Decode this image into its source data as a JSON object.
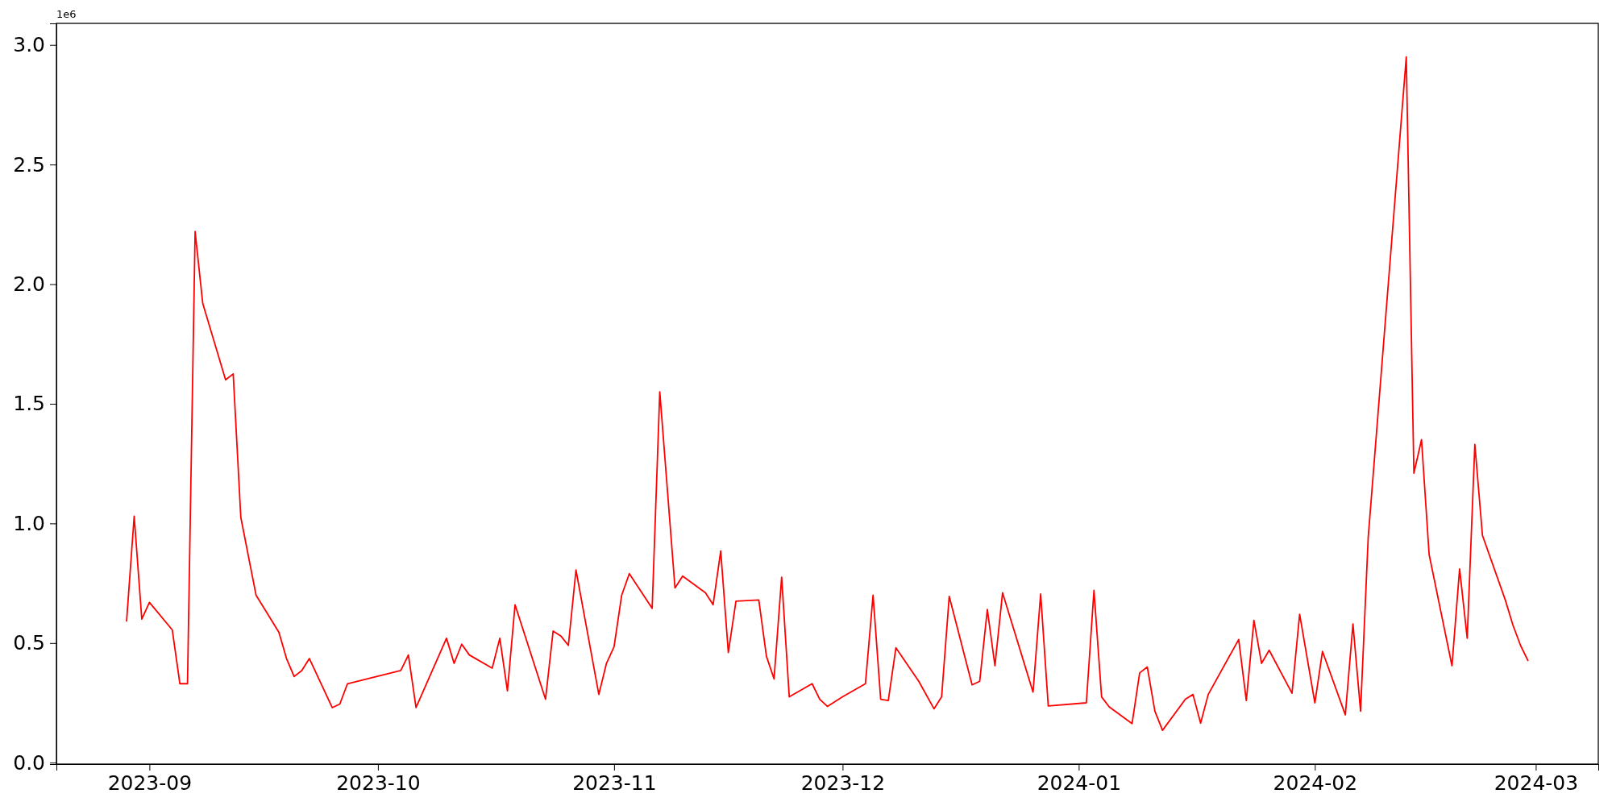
{
  "chart_data": {
    "type": "line",
    "annotations": [
      "1e6"
    ],
    "x": [
      "2023-08-29",
      "2023-08-30",
      "2023-08-31",
      "2023-09-01",
      "2023-09-04",
      "2023-09-05",
      "2023-09-06",
      "2023-09-07",
      "2023-09-08",
      "2023-09-11",
      "2023-09-12",
      "2023-09-13",
      "2023-09-15",
      "2023-09-18",
      "2023-09-19",
      "2023-09-20",
      "2023-09-21",
      "2023-09-22",
      "2023-09-25",
      "2023-09-26",
      "2023-09-27",
      "2023-10-04",
      "2023-10-05",
      "2023-10-06",
      "2023-10-10",
      "2023-10-11",
      "2023-10-12",
      "2023-10-13",
      "2023-10-16",
      "2023-10-17",
      "2023-10-18",
      "2023-10-19",
      "2023-10-23",
      "2023-10-24",
      "2023-10-25",
      "2023-10-26",
      "2023-10-27",
      "2023-10-30",
      "2023-10-31",
      "2023-11-01",
      "2023-11-02",
      "2023-11-03",
      "2023-11-06",
      "2023-11-07",
      "2023-11-09",
      "2023-11-10",
      "2023-11-13",
      "2023-11-14",
      "2023-11-15",
      "2023-11-16",
      "2023-11-17",
      "2023-11-20",
      "2023-11-21",
      "2023-11-22",
      "2023-11-23",
      "2023-11-24",
      "2023-11-27",
      "2023-11-28",
      "2023-11-29",
      "2023-12-01",
      "2023-12-04",
      "2023-12-05",
      "2023-12-06",
      "2023-12-07",
      "2023-12-08",
      "2023-12-11",
      "2023-12-13",
      "2023-12-14",
      "2023-12-15",
      "2023-12-18",
      "2023-12-19",
      "2023-12-20",
      "2023-12-21",
      "2023-12-22",
      "2023-12-26",
      "2023-12-27",
      "2023-12-28",
      "2024-01-02",
      "2024-01-03",
      "2024-01-04",
      "2024-01-05",
      "2024-01-08",
      "2024-01-09",
      "2024-01-10",
      "2024-01-11",
      "2024-01-12",
      "2024-01-15",
      "2024-01-16",
      "2024-01-17",
      "2024-01-18",
      "2024-01-22",
      "2024-01-23",
      "2024-01-24",
      "2024-01-25",
      "2024-01-26",
      "2024-01-29",
      "2024-01-30",
      "2024-02-01",
      "2024-02-02",
      "2024-02-05",
      "2024-02-06",
      "2024-02-07",
      "2024-02-08",
      "2024-02-13",
      "2024-02-14",
      "2024-02-15",
      "2024-02-16",
      "2024-02-19",
      "2024-02-20",
      "2024-02-21",
      "2024-02-22",
      "2024-02-23",
      "2024-02-26",
      "2024-02-27",
      "2024-02-28",
      "2024-02-29"
    ],
    "series": [
      {
        "color": "#ff0000",
        "values": [
          0.59,
          1.03,
          0.6,
          0.67,
          0.555,
          0.33,
          0.33,
          2.22,
          1.92,
          1.6,
          1.625,
          1.025,
          0.7,
          0.545,
          0.435,
          0.36,
          0.385,
          0.435,
          0.23,
          0.245,
          0.33,
          0.385,
          0.45,
          0.23,
          0.52,
          0.415,
          0.495,
          0.45,
          0.395,
          0.52,
          0.3,
          0.66,
          0.265,
          0.55,
          0.53,
          0.49,
          0.805,
          0.285,
          0.415,
          0.485,
          0.7,
          0.79,
          0.645,
          1.55,
          0.73,
          0.78,
          0.71,
          0.66,
          0.885,
          0.46,
          0.675,
          0.68,
          0.445,
          0.35,
          0.775,
          0.275,
          0.33,
          0.265,
          0.235,
          0.275,
          0.33,
          0.7,
          0.265,
          0.26,
          0.48,
          0.34,
          0.225,
          0.275,
          0.695,
          0.325,
          0.34,
          0.64,
          0.405,
          0.71,
          0.295,
          0.705,
          0.237,
          0.25,
          0.72,
          0.275,
          0.233,
          0.163,
          0.375,
          0.4,
          0.215,
          0.135,
          0.265,
          0.285,
          0.165,
          0.285,
          0.515,
          0.26,
          0.595,
          0.415,
          0.47,
          0.29,
          0.62,
          0.25,
          0.465,
          0.2,
          0.58,
          0.215,
          0.94,
          2.95,
          1.21,
          1.35,
          0.87,
          0.405,
          0.81,
          0.52,
          1.33,
          0.95,
          0.68,
          0.575,
          0.49,
          0.425
        ]
      }
    ],
    "xlim": [
      "2023-08-19T19:00",
      "2024-03-09T05:00"
    ],
    "xticks": [
      {
        "value": "2023-09-01",
        "label": "2023-09"
      },
      {
        "value": "2023-10-01",
        "label": "2023-10"
      },
      {
        "value": "2023-11-01",
        "label": "2023-11"
      },
      {
        "value": "2023-12-01",
        "label": "2023-12"
      },
      {
        "value": "2024-01-01",
        "label": "2024-01"
      },
      {
        "value": "2024-02-01",
        "label": "2024-02"
      },
      {
        "value": "2024-03-01",
        "label": "2024-03"
      }
    ],
    "ylim": [
      -0.006,
      3.09
    ],
    "yticks": [
      {
        "value": 0,
        "label": "0.0"
      },
      {
        "value": 0.5,
        "label": "0.5"
      },
      {
        "value": 1,
        "label": "1.0"
      },
      {
        "value": 1.5,
        "label": "1.5"
      },
      {
        "value": 2,
        "label": "2.0"
      },
      {
        "value": 2.5,
        "label": "2.5"
      },
      {
        "value": 3,
        "label": "3.0"
      }
    ],
    "marker": "none",
    "line_style": "solid"
  }
}
